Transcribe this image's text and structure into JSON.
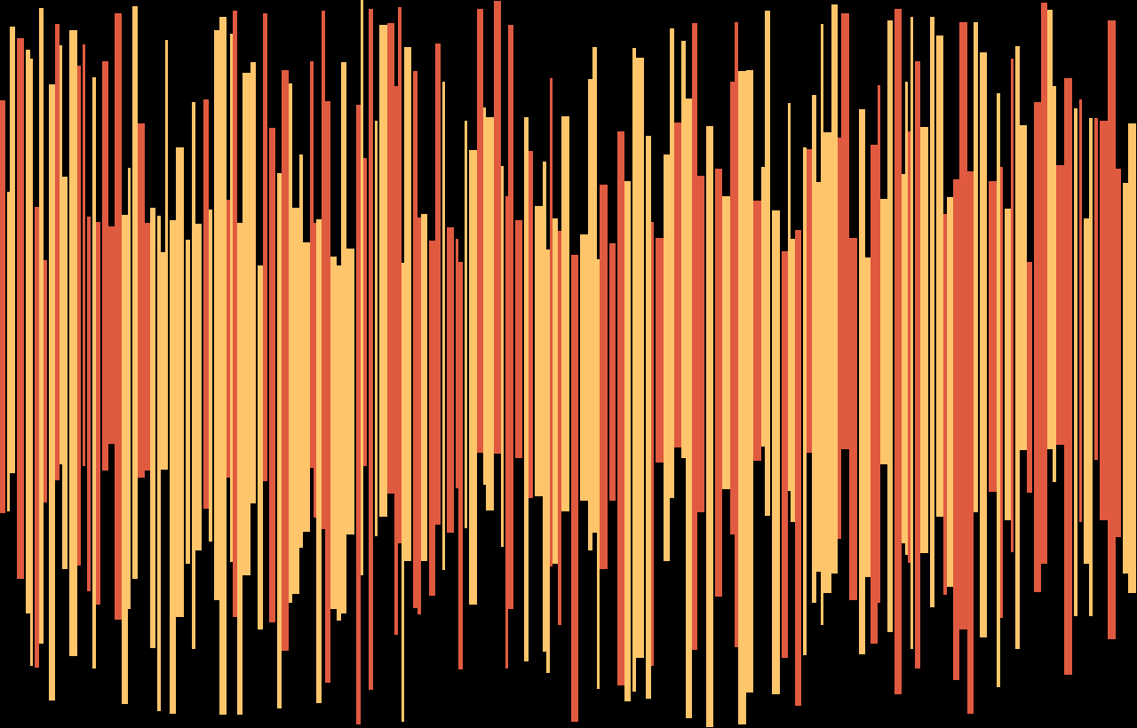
{
  "artwork": {
    "background": "#000000",
    "palette": {
      "coral": "#E05A40",
      "amber": "#FFC56A"
    },
    "stripe_count": 320
  }
}
